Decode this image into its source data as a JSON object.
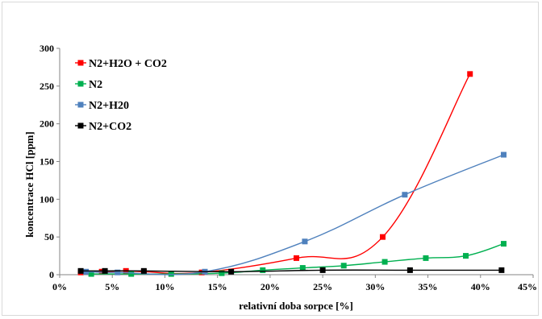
{
  "chart_data": {
    "type": "scatter",
    "xlabel": "relativní doba sorpce [%]",
    "ylabel": "koncentrace HCl [ppm]",
    "xlim": [
      0,
      45
    ],
    "ylim": [
      0,
      300
    ],
    "x_ticks": [
      "0%",
      "5%",
      "10%",
      "15%",
      "20%",
      "25%",
      "30%",
      "35%",
      "40%",
      "45%"
    ],
    "y_ticks": [
      "0",
      "50",
      "100",
      "150",
      "200",
      "250",
      "300"
    ],
    "grid": false,
    "legend_position": "top-left",
    "series": [
      {
        "name": "N2+H2O + CO2",
        "color": "#ff0000",
        "points": [
          [
            2,
            3
          ],
          [
            4,
            4
          ],
          [
            6.3,
            5
          ],
          [
            8,
            4
          ],
          [
            13.5,
            3
          ],
          [
            22.5,
            22
          ],
          [
            30.7,
            50
          ],
          [
            39,
            266
          ]
        ]
      },
      {
        "name": "N2",
        "color": "#00b050",
        "points": [
          [
            3,
            1
          ],
          [
            6.8,
            1
          ],
          [
            10.6,
            1
          ],
          [
            15.4,
            2
          ],
          [
            19.3,
            6
          ],
          [
            23.1,
            9
          ],
          [
            27,
            12
          ],
          [
            30.9,
            17
          ],
          [
            34.8,
            22
          ],
          [
            38.6,
            25
          ],
          [
            42.2,
            41
          ]
        ]
      },
      {
        "name": "N2+H20",
        "color": "#4f81bd",
        "points": [
          [
            2.5,
            4
          ],
          [
            5.5,
            3
          ],
          [
            13.8,
            4
          ],
          [
            23.3,
            44
          ],
          [
            32.8,
            106
          ],
          [
            42.2,
            159
          ]
        ]
      },
      {
        "name": "N2+CO2",
        "color": "#000000",
        "points": [
          [
            2,
            5
          ],
          [
            4.3,
            5
          ],
          [
            8,
            5
          ],
          [
            16.3,
            4
          ],
          [
            25,
            6
          ],
          [
            33.3,
            6
          ],
          [
            42,
            6
          ]
        ]
      }
    ]
  }
}
